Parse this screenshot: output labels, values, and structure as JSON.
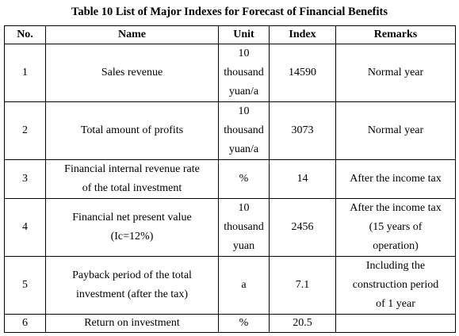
{
  "caption": "Table 10 List of Major Indexes for Forecast of Financial Benefits",
  "headers": {
    "no": "No.",
    "name": "Name",
    "unit": "Unit",
    "index": "Index",
    "remarks": "Remarks"
  },
  "rows": [
    {
      "no": "1",
      "name": "Sales revenue",
      "unit": "10\nthousand\nyuan/a",
      "index": "14590",
      "remarks": "Normal year"
    },
    {
      "no": "2",
      "name": "Total amount of profits",
      "unit": "10\nthousand\nyuan/a",
      "index": "3073",
      "remarks": "Normal year"
    },
    {
      "no": "3",
      "name": "Financial internal revenue rate\nof the total investment",
      "unit": "%",
      "index": "14",
      "remarks": "After the income tax"
    },
    {
      "no": "4",
      "name": "Financial net present value\n(Ic=12%)",
      "unit": "10\nthousand\nyuan",
      "index": "2456",
      "remarks": "After the income tax\n(15 years of\noperation)"
    },
    {
      "no": "5",
      "name": "Payback period of the total\ninvestment (after the tax)",
      "unit": "a",
      "index": "7.1",
      "remarks": "Including the\nconstruction period\nof 1 year"
    },
    {
      "no": "6",
      "name": "Return on investment",
      "unit": "%",
      "index": "20.5",
      "remarks": ""
    }
  ]
}
